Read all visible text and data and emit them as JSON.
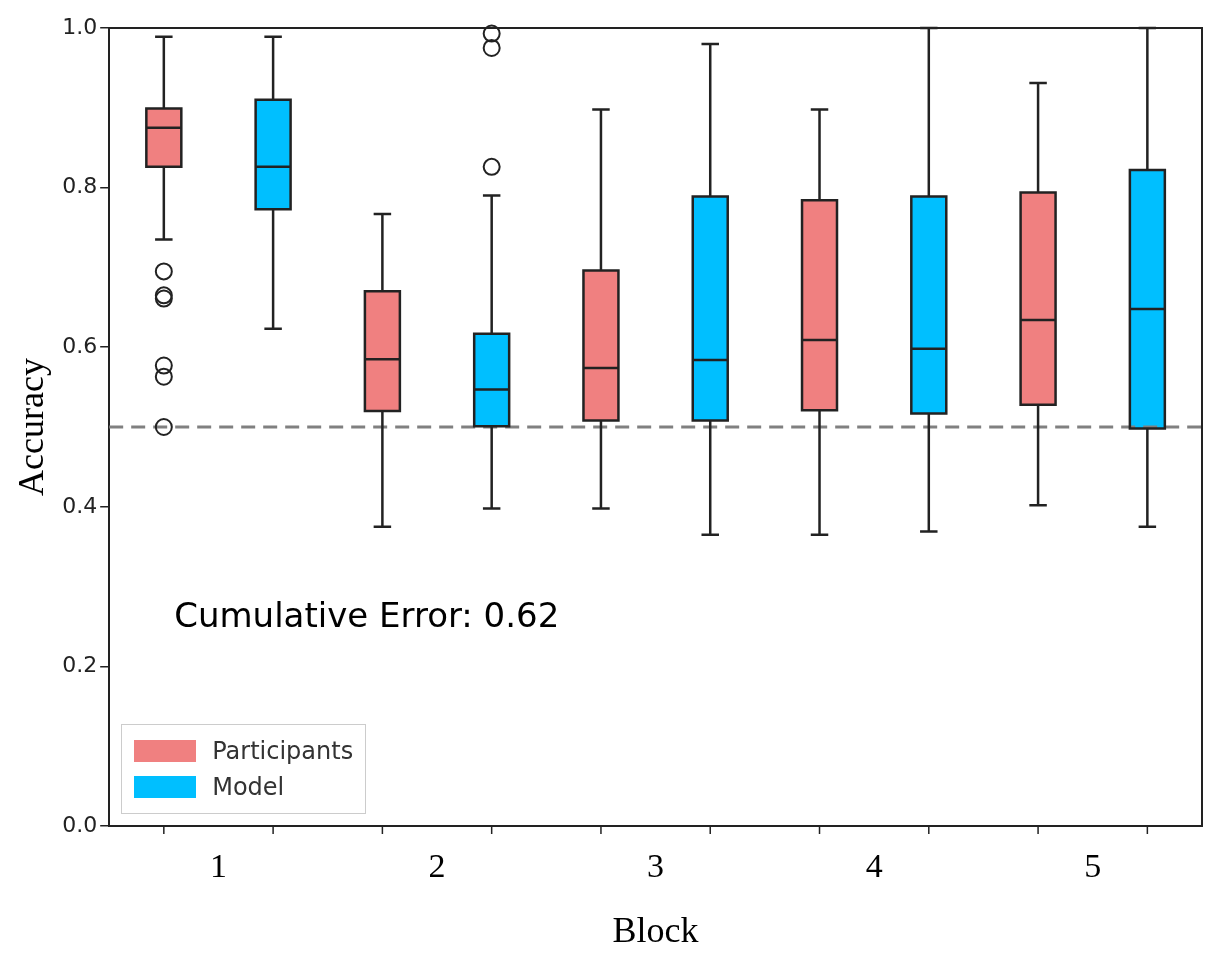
{
  "chart_data": {
    "type": "box",
    "categories": [
      "1",
      "2",
      "3",
      "4",
      "5"
    ],
    "xlabel": "Block",
    "ylabel": "Accuracy",
    "ylim": [
      0,
      1
    ],
    "yticks": [
      {
        "value": 0,
        "label": "0.0"
      },
      {
        "value": 0.2,
        "label": "0.2"
      },
      {
        "value": 0.4,
        "label": "0.4"
      },
      {
        "value": 0.6,
        "label": "0.6"
      },
      {
        "value": 0.8,
        "label": "0.8"
      },
      {
        "value": 1,
        "label": "1.0"
      }
    ],
    "legend": "bottom left",
    "ref_lines": [
      {
        "axis": "y",
        "value": 0.5,
        "color": "#808080",
        "line_style": "dashed"
      }
    ],
    "annotations": [
      "Cumulative Error: 0.62"
    ],
    "series": [
      {
        "name": "Participants",
        "color": "#f08080",
        "boxes": [
          {
            "low": 0.735,
            "q1": 0.826,
            "median": 0.875,
            "q3": 0.899,
            "high": 0.989,
            "outliers": [
              0.695,
              0.665,
              0.661,
              0.577,
              0.563,
              0.5
            ]
          },
          {
            "low": 0.375,
            "q1": 0.52,
            "median": 0.585,
            "q3": 0.67,
            "high": 0.767
          },
          {
            "low": 0.398,
            "q1": 0.508,
            "median": 0.574,
            "q3": 0.696,
            "high": 0.898
          },
          {
            "low": 0.365,
            "q1": 0.521,
            "median": 0.609,
            "q3": 0.784,
            "high": 0.898
          },
          {
            "low": 0.402,
            "q1": 0.528,
            "median": 0.634,
            "q3": 0.794,
            "high": 0.931
          }
        ]
      },
      {
        "name": "Model",
        "color": "#00bfff",
        "boxes": [
          {
            "low": 0.623,
            "q1": 0.773,
            "median": 0.826,
            "q3": 0.91,
            "high": 0.989
          },
          {
            "low": 0.398,
            "q1": 0.501,
            "median": 0.547,
            "q3": 0.617,
            "high": 0.79,
            "outliers": [
              0.993,
              0.975,
              0.826
            ]
          },
          {
            "low": 0.365,
            "q1": 0.508,
            "median": 0.584,
            "q3": 0.789,
            "high": 0.98
          },
          {
            "low": 0.369,
            "q1": 0.517,
            "median": 0.598,
            "q3": 0.789,
            "high": 1.0
          },
          {
            "low": 0.375,
            "q1": 0.498,
            "median": 0.648,
            "q3": 0.822,
            "high": 1.0
          }
        ]
      }
    ]
  }
}
